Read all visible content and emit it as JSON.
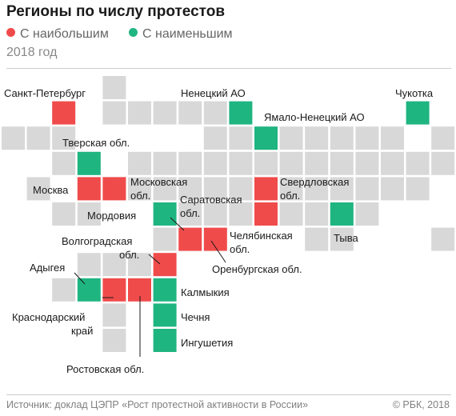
{
  "title": "Регионы по числу протестов",
  "legend": {
    "items": [
      {
        "label": "С наибольшим",
        "color": "#f04b4b"
      },
      {
        "label": "С наименьшим",
        "color": "#1fb581"
      }
    ]
  },
  "subtitle": "2018 год",
  "colors": {
    "neutral": "#d8d8d8",
    "most": "#f04b4b",
    "least": "#1fb581"
  },
  "regions_most": [
    "Санкт-Петербург",
    "Москва",
    "Московская обл.",
    "Свердловская обл.",
    "Саратовская обл.",
    "Челябинская обл.",
    "Оренбургская обл.",
    "Волгоградская обл.",
    "Краснодарский край",
    "Ростовская обл."
  ],
  "regions_least": [
    "Ненецкий АО",
    "Чукотка",
    "Ямало-Ненецкий АО",
    "Тверская обл.",
    "Мордовия",
    "Тыва",
    "Адыгея",
    "Калмыкия",
    "Чечня",
    "Ингушетия"
  ],
  "labels": {
    "spb": "Санкт-Петербург",
    "nenets": "Ненецкий АО",
    "chukotka": "Чукотка",
    "yamal": "Ямало-Ненецкий АО",
    "tver": "Тверская обл.",
    "moscow": "Москва",
    "moscow_obl_1": "Московская",
    "moscow_obl_2": "обл.",
    "sverdlovsk_1": "Свердловская",
    "sverdlovsk_2": "обл.",
    "saratov_1": "Саратовская",
    "saratov_2": "обл.",
    "mordovia": "Мордовия",
    "volgograd_1": "Волгоградская",
    "volgograd_2": "обл.",
    "chelyabinsk_1": "Челябинская",
    "chelyabinsk_2": "обл.",
    "tyva": "Тыва",
    "orenburg": "Оренбургская обл.",
    "adygea": "Адыгея",
    "kalmykia": "Калмыкия",
    "krasnodar_1": "Краснодарский",
    "krasnodar_2": "край",
    "chechnya": "Чечня",
    "ingushetia": "Ингушетия",
    "rostov": "Ростовская обл."
  },
  "footer": {
    "source": "Источник: доклад ЦЭПР «Рост протестной активности в России»",
    "credit": "© РБК, 2018"
  }
}
